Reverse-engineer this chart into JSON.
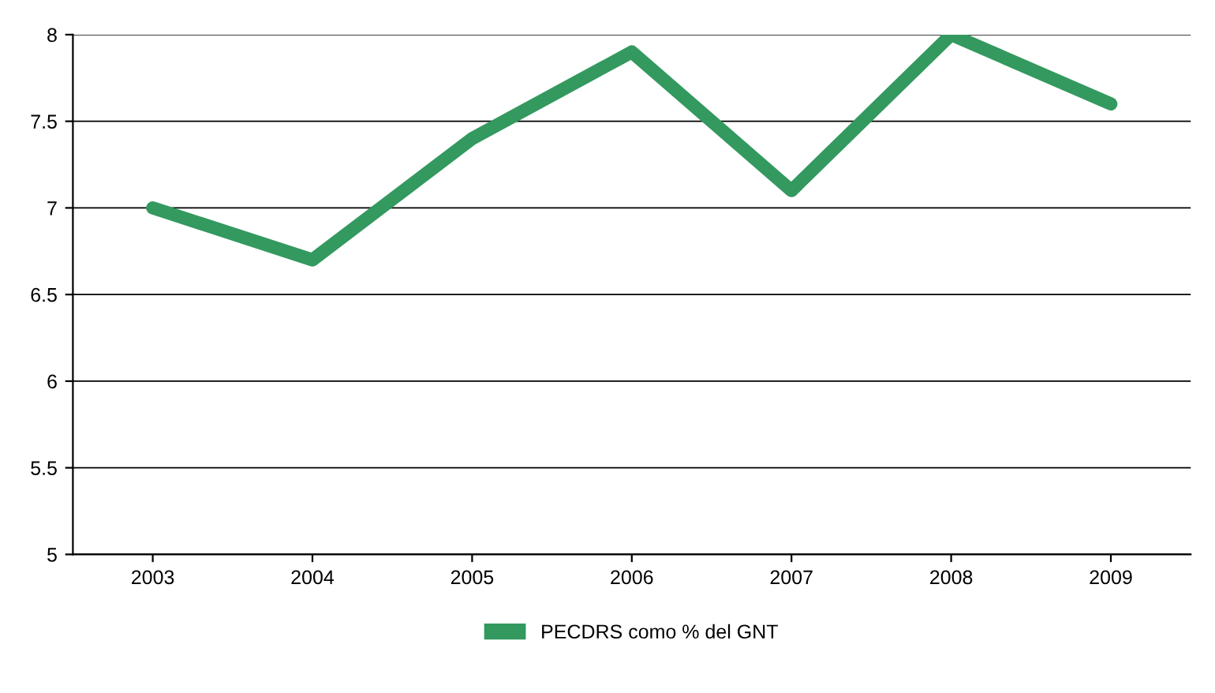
{
  "chart_data": {
    "type": "line",
    "categories": [
      "2003",
      "2004",
      "2005",
      "2006",
      "2007",
      "2008",
      "2009"
    ],
    "series": [
      {
        "name": "PECDRS como % del GNT",
        "color": "#33995f",
        "values": [
          7.0,
          6.7,
          7.4,
          7.9,
          7.1,
          8.0,
          7.6
        ]
      }
    ],
    "ylim": [
      5,
      8
    ],
    "yticks": [
      5,
      5.5,
      6,
      6.5,
      7,
      7.5,
      8
    ],
    "grid": "y",
    "legend": "bottom",
    "marker": "none",
    "line_style": "solid"
  }
}
